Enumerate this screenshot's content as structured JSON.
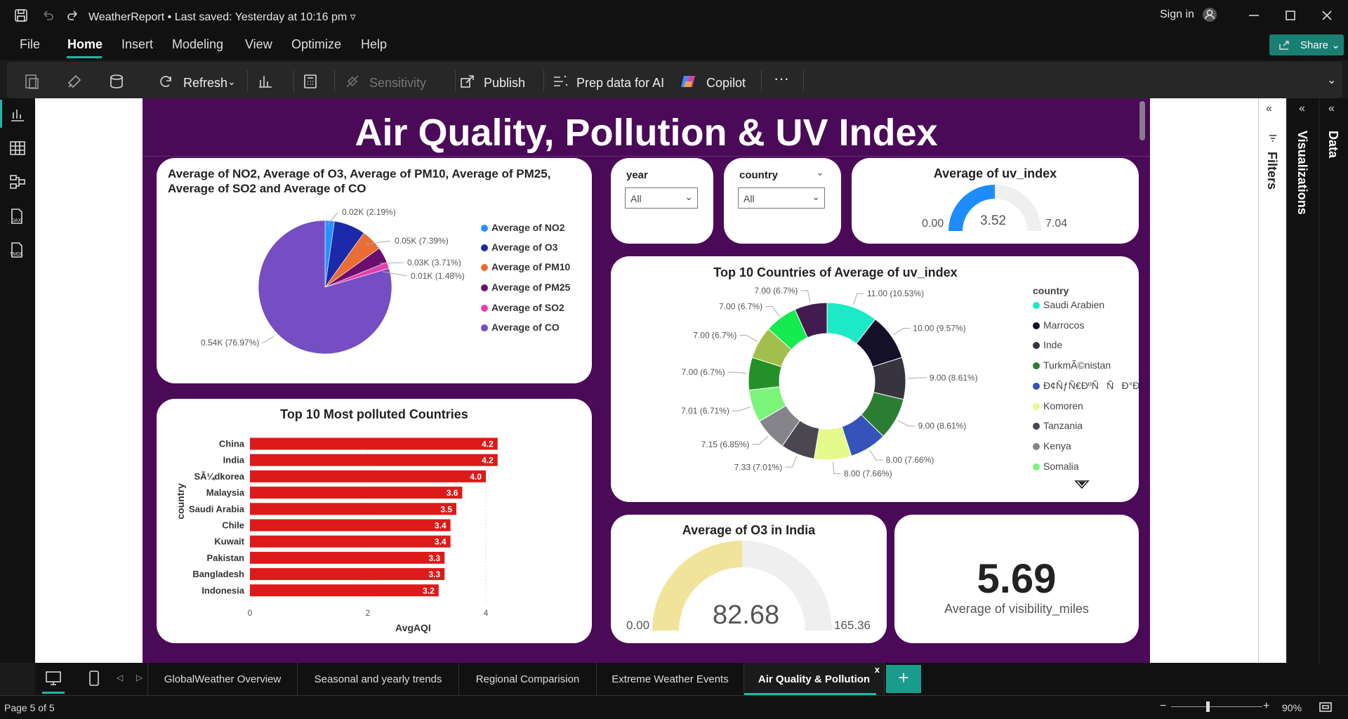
{
  "window": {
    "title": "WeatherReport",
    "saved": "Last saved: Yesterday at 10:16 pm",
    "sign_in": "Sign in"
  },
  "menu": {
    "file": "File",
    "home": "Home",
    "insert": "Insert",
    "modeling": "Modeling",
    "view": "View",
    "optimize": "Optimize",
    "help": "Help",
    "share": "Share"
  },
  "ribbon": {
    "refresh": "Refresh",
    "sensitivity": "Sensitivity",
    "publish": "Publish",
    "prep_data": "Prep data for AI",
    "copilot": "Copilot",
    "more": "···"
  },
  "report": {
    "title": "Air Quality, Pollution & UV Index"
  },
  "pollutant_pie": {
    "title": "Average of NO2, Average of O3, Average of PM10, Average of PM25, Average of SO2 and Average of CO",
    "labels": [
      "0.02K (2.19%)",
      "0.05K (7.39%)",
      "0.03K (3.71%)",
      "0.01K (1.48%)",
      "0.54K (76.97%)"
    ],
    "legend": [
      "Average of NO2",
      "Average of O3",
      "Average of PM10",
      "Average of PM25",
      "Average of SO2",
      "Average of CO"
    ],
    "colors": [
      "#2592ff",
      "#1a2aa8",
      "#ea6d35",
      "#6b0f6e",
      "#e43fad",
      "#744ec2"
    ]
  },
  "slicers": {
    "year": {
      "title": "year",
      "value": "All"
    },
    "country": {
      "title": "country",
      "value": "All"
    }
  },
  "uv_gauge": {
    "title": "Average of uv_index",
    "min": "0.00",
    "value": "3.52",
    "max": "7.04",
    "fraction": 0.5
  },
  "uv_donut": {
    "title": "Top 10 Countries of Average of uv_index",
    "legend_title": "country",
    "legend": [
      {
        "name": "Saudi Arabien",
        "color": "#1de9c6"
      },
      {
        "name": "Marrocos",
        "color": "#131027"
      },
      {
        "name": "Inde",
        "color": "#37343f"
      },
      {
        "name": "TurkmÃ©nistan",
        "color": "#2c7d34"
      },
      {
        "name": "Ð¢ÑƒÑ€ÐºÑÑÐ°Ð½",
        "color": "#3553b8"
      },
      {
        "name": "Komoren",
        "color": "#e6fa8a"
      },
      {
        "name": "Tanzania",
        "color": "#4b4750"
      },
      {
        "name": "Kenya",
        "color": "#85848a"
      },
      {
        "name": "Somalia",
        "color": "#7af57a"
      }
    ],
    "slice_labels": [
      "11.00 (10.53%)",
      "10.00 (9.57%)",
      "9.00 (8.61%)",
      "9.00 (8.61%)",
      "8.00 (7.66%)",
      "8.00 (7.66%)",
      "7.33 (7.01%)",
      "7.15 (6.85%)",
      "7.01 (6.71%)",
      "7.00 (6.7%)",
      "7.00 (6.7%)",
      "7.00 (6.7%)",
      "7.00 (6.7%)"
    ]
  },
  "chart_data": [
    {
      "type": "pie",
      "title": "Average of NO2, Average of O3, Average of PM10, Average of PM25, Average of SO2 and Average of CO",
      "categories": [
        "Average of NO2",
        "Average of O3",
        "Average of PM10",
        "Average of PM25",
        "Average of SO2",
        "Average of CO"
      ],
      "values": [
        15.3,
        51.7,
        35.0,
        26.0,
        10.4,
        538.6
      ],
      "percents": [
        2.19,
        7.39,
        5.0,
        3.71,
        1.48,
        76.97
      ]
    },
    {
      "type": "bar",
      "orientation": "horizontal",
      "title": "Top 10 Most polluted Countries",
      "xlabel": "AvgAQI",
      "ylabel": "country",
      "categories": [
        "China",
        "India",
        "SÃ¼dkorea",
        "Malaysia",
        "Saudi Arabia",
        "Chile",
        "Kuwait",
        "Pakistan",
        "Bangladesh",
        "Indonesia"
      ],
      "values": [
        4.2,
        4.2,
        4.0,
        3.6,
        3.5,
        3.4,
        3.4,
        3.3,
        3.3,
        3.2
      ],
      "data_labels": [
        "4.2",
        "4.2",
        "4.0",
        "3.6",
        "3.5",
        "3.4",
        "3.4",
        "3.3",
        "3.3",
        "3.2"
      ],
      "xticks": [
        "0",
        "2",
        "4"
      ],
      "xlim": [
        0,
        4.5
      ],
      "color": "#dd1a1a"
    },
    {
      "type": "pie",
      "variant": "donut",
      "title": "Top 10 Countries of Average of uv_index",
      "values": [
        11.0,
        10.0,
        9.0,
        9.0,
        8.0,
        8.0,
        7.33,
        7.15,
        7.01,
        7.0,
        7.0,
        7.0,
        7.0
      ],
      "colors": [
        "#1de9c6",
        "#131027",
        "#37343f",
        "#2c7d34",
        "#3553b8",
        "#e6fa8a",
        "#4b4750",
        "#85848a",
        "#7af57a",
        "#249028",
        "#a2bf4c",
        "#15ea4f",
        "#421b4f"
      ]
    }
  ],
  "o3_gauge": {
    "title": "Average of O3 in India",
    "min": "0.00",
    "value": "82.68",
    "max": "165.36",
    "fraction": 0.5
  },
  "visibility_card": {
    "value": "5.69",
    "label": "Average of visibility_miles"
  },
  "panes": {
    "filters": "Filters",
    "visualizations": "Visualizations",
    "data": "Data"
  },
  "tabs": [
    {
      "label": "GlobalWeather Overview"
    },
    {
      "label": "Seasonal and yearly trends"
    },
    {
      "label": "Regional Comparision"
    },
    {
      "label": "Extreme Weather Events"
    },
    {
      "label": "Air Quality & Pollution"
    }
  ],
  "status": {
    "page": "Page 5 of 5",
    "zoom": "90%"
  }
}
